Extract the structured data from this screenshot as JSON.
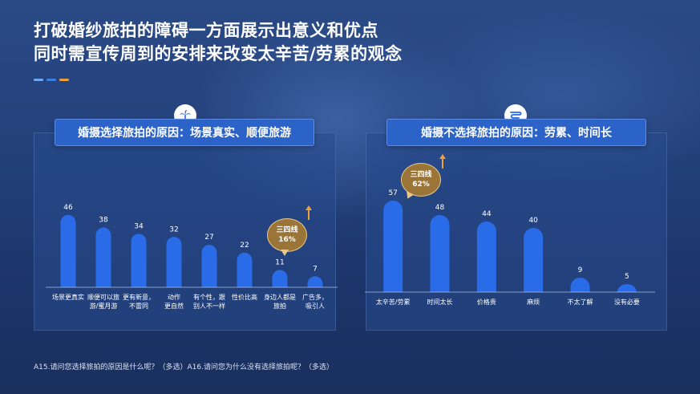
{
  "title": {
    "line1": "打破婚纱旅拍的障碍一方面展示出意义和优点",
    "line2": "同时需宣传周到的安排来改变太辛苦/劳累的观念"
  },
  "colors": {
    "bar": "#2a6be8",
    "dash1": "#6fa8f0",
    "dash2": "#3d7fe0",
    "dash3": "#f0a03a",
    "bubble": "#9a7537",
    "arrow": "#f0a03a"
  },
  "left": {
    "icon": "palm-tree-beach-icon",
    "header": "婚摄选择旅拍的原因：场景真实、顺便旅游",
    "callout": {
      "line1": "三四线",
      "line2": "16%"
    }
  },
  "right": {
    "icon": "swirl-wind-icon",
    "header": "婚摄不选择旅拍的原因：劳累、时间长",
    "callout": {
      "line1": "三四线",
      "line2": "62%"
    }
  },
  "footnote": "A15.请问您选择旅拍的原因是什么呢？（多选）A16.请问您为什么没有选择旅拍呢？（多选）",
  "chart_data": [
    {
      "type": "bar",
      "title": "婚摄选择旅拍的原因：场景真实、顺便旅游",
      "categories": [
        [
          "场景更真实"
        ],
        [
          "顺便可以旅",
          "游/蜜月游"
        ],
        [
          "更有新意，",
          "不雷同"
        ],
        [
          "动作",
          "更自然"
        ],
        [
          "有个性，跟",
          "别人不一样"
        ],
        [
          "性价比高"
        ],
        [
          "身边人都是",
          "旅拍"
        ],
        [
          "广告多，",
          "吸引人"
        ]
      ],
      "values": [
        46,
        38,
        34,
        32,
        27,
        22,
        11,
        7
      ],
      "ylim": [
        0,
        50
      ],
      "grid": false
    },
    {
      "type": "bar",
      "title": "婚摄不选择旅拍的原因：劳累、时间长",
      "categories": [
        [
          "太辛苦/劳累"
        ],
        [
          "时间太长"
        ],
        [
          "价格贵"
        ],
        [
          "麻烦"
        ],
        [
          "不太了解"
        ],
        [
          "没有必要"
        ]
      ],
      "values": [
        57,
        48,
        44,
        40,
        9,
        5
      ],
      "ylim": [
        0,
        60
      ],
      "grid": false
    }
  ]
}
